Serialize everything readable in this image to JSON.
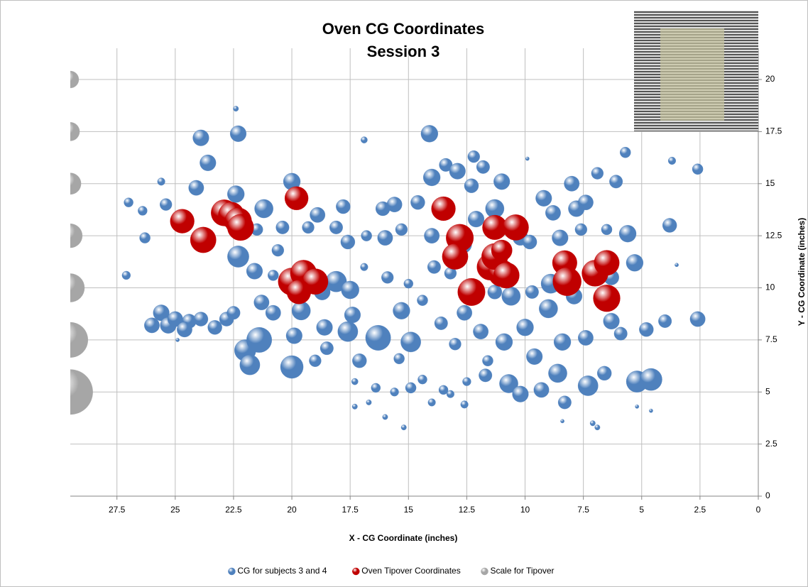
{
  "chart_data": {
    "type": "bubble",
    "title": "Oven CG Coordinates",
    "subtitle": "Session 3",
    "x_label": "X - CG Coordinate (inches)",
    "y_label": "Y - CG Coordinate (inches)",
    "xlim": [
      29.5,
      0
    ],
    "ylim": [
      0,
      21.5
    ],
    "xticks": [
      27.5,
      25,
      22.5,
      20,
      17.5,
      15,
      12.5,
      10,
      7.5,
      5,
      2.5,
      0
    ],
    "yticks": [
      0,
      2.5,
      5,
      7.5,
      10,
      12.5,
      15,
      17.5,
      20
    ],
    "grid": true,
    "legend": "bottom",
    "series": [
      {
        "name": "CG for subjects 3 and 4",
        "color": "#4f81bd",
        "x": [
          27,
          27.1,
          26.4,
          26.3,
          26,
          25.6,
          25.3,
          25.4,
          25.6,
          25,
          24.4,
          24.6,
          24.1,
          23.9,
          23.6,
          23.9,
          23.3,
          22.8,
          22.5,
          22.4,
          22.3,
          22.3,
          22.4,
          22,
          21.8,
          21.6,
          21.4,
          21.2,
          21.3,
          21.5,
          20.8,
          20.6,
          20.4,
          20,
          20,
          19.9,
          19.6,
          19.3,
          18.9,
          18.7,
          18.6,
          18.5,
          18.1,
          18.1,
          17.8,
          17.6,
          17.6,
          17.4,
          17.1,
          16.9,
          16.9,
          16.8,
          16.3,
          16.1,
          16,
          15.9,
          15.6,
          15.4,
          15.3,
          15.3,
          15,
          14.9,
          14.9,
          14.6,
          14.4,
          14.1,
          14,
          14,
          13.6,
          13.4,
          13.2,
          13,
          12.9,
          12.6,
          12.3,
          12.2,
          12.1,
          11.9,
          11.8,
          11.7,
          11.3,
          11.3,
          11,
          10.9,
          10.7,
          10.6,
          10.2,
          10,
          9.9,
          9.7,
          9.6,
          9.2,
          9,
          8.8,
          8.5,
          8.4,
          8.3,
          8,
          7.8,
          7.6,
          7.4,
          7.4,
          7.3,
          7.1,
          6.9,
          6.6,
          6.5,
          6.3,
          6.1,
          5.9,
          5.7,
          5.6,
          5.3,
          5.2,
          4.6,
          4.8,
          4,
          3.8,
          3.7,
          3.3,
          2.6,
          2.6,
          3.5,
          4.6,
          5.2,
          7.1,
          6.9,
          8.4,
          12.6,
          13.2,
          14,
          15.2,
          16,
          16.7,
          17.3,
          17.3,
          16.4,
          15.6,
          14.4,
          13.5,
          12.5,
          11.6,
          24.9,
          9.3,
          8.6,
          10.2,
          17.5,
          19,
          20.8,
          12.7,
          13.9,
          6.3,
          9.8,
          7.9,
          8.9
        ],
        "y": [
          14.1,
          10.6,
          13.7,
          12.4,
          8.2,
          8.8,
          8.2,
          14,
          15.1,
          8.5,
          8.4,
          8,
          14.8,
          17.2,
          16,
          8.5,
          8.1,
          8.5,
          8.8,
          14.5,
          11.5,
          17.4,
          18.6,
          7,
          6.3,
          10.8,
          7.5,
          13.8,
          9.3,
          12.8,
          8.8,
          11.8,
          12.9,
          15.1,
          6.2,
          7.7,
          8.9,
          12.9,
          13.5,
          9.8,
          8.1,
          7.1,
          10.3,
          12.9,
          13.9,
          12.2,
          7.9,
          8.7,
          6.5,
          17.1,
          11,
          12.5,
          7.6,
          13.8,
          12.4,
          10.5,
          14,
          6.6,
          8.9,
          12.8,
          10.2,
          7.4,
          5.2,
          14.1,
          9.4,
          17.4,
          12.5,
          15.3,
          8.3,
          15.9,
          10.7,
          7.3,
          15.6,
          8.8,
          14.9,
          16.3,
          13.3,
          7.9,
          15.8,
          5.8,
          13.8,
          9.8,
          15.1,
          7.4,
          5.4,
          9.6,
          12.4,
          8.1,
          16.2,
          9.8,
          6.7,
          14.3,
          9,
          13.6,
          12.4,
          7.4,
          4.5,
          15,
          13.8,
          12.8,
          14.1,
          7.6,
          5.3,
          10.9,
          15.5,
          5.9,
          12.8,
          8.4,
          15.1,
          7.8,
          16.5,
          12.6,
          11.2,
          5.5,
          5.6,
          8,
          8.4,
          13,
          16.1,
          18,
          15.7,
          8.5,
          11.1,
          4.1,
          4.3,
          3.5,
          3.3,
          3.6,
          4.4,
          4.9,
          4.5,
          3.3,
          3.8,
          4.5,
          4.3,
          5.5,
          5.2,
          5,
          5.6,
          5.1,
          5.5,
          6.5,
          7.5,
          5.1,
          5.9,
          4.9,
          9.9,
          6.5,
          10.6,
          12.1,
          11,
          10.5,
          12.2,
          9.6,
          10.2
        ],
        "sizes": [
          0.3,
          0.25,
          0.3,
          0.4,
          0.8,
          0.9,
          0.9,
          0.5,
          0.2,
          0.8,
          0.7,
          0.8,
          0.8,
          0.9,
          0.9,
          0.7,
          0.7,
          0.7,
          0.6,
          1,
          1.6,
          0.9,
          0.1,
          1.6,
          1.4,
          0.9,
          2.2,
          1.2,
          0.8,
          0.5,
          0.8,
          0.5,
          0.6,
          1,
          1.8,
          0.9,
          1.2,
          0.5,
          0.8,
          0.9,
          0.9,
          0.6,
          1.5,
          0.6,
          0.7,
          0.7,
          1.4,
          0.9,
          0.7,
          0.15,
          0.2,
          0.4,
          2.2,
          0.7,
          0.8,
          0.5,
          0.8,
          0.4,
          1,
          0.5,
          0.3,
          1.4,
          0.4,
          0.7,
          0.4,
          1,
          0.8,
          1,
          0.6,
          0.6,
          0.5,
          0.5,
          0.9,
          0.8,
          0.7,
          0.5,
          0.9,
          0.8,
          0.6,
          0.6,
          1.2,
          0.7,
          0.9,
          1,
          1.2,
          1.2,
          0.8,
          1,
          0.05,
          0.6,
          0.9,
          0.9,
          1.2,
          0.8,
          0.9,
          1,
          0.6,
          0.8,
          0.9,
          0.5,
          0.8,
          0.8,
          1.4,
          0.7,
          0.5,
          0.7,
          0.4,
          0.9,
          0.6,
          0.6,
          0.4,
          1,
          1,
          1.6,
          1.7,
          0.7,
          0.6,
          0.7,
          0.2,
          0.3,
          0.4,
          0.8,
          0.05,
          0.05,
          0.05,
          0.1,
          0.1,
          0.05,
          0.2,
          0.2,
          0.2,
          0.1,
          0.1,
          0.1,
          0.1,
          0.15,
          0.3,
          0.25,
          0.3,
          0.3,
          0.25,
          0.4,
          0.05,
          0.8,
          1.2,
          0.9,
          1.1,
          0.5,
          0.4,
          1.3,
          0.6,
          0.8,
          0.7,
          0.9,
          1.3
        ]
      },
      {
        "name": "Oven Tipover Coordinates",
        "color": "#c00000",
        "x": [
          24.7,
          23.8,
          22.9,
          22.6,
          22.3,
          22.2,
          20,
          19.5,
          19,
          19.7,
          19.8,
          13.5,
          12.8,
          13,
          12.3,
          11.3,
          11.5,
          11,
          11.3,
          11,
          10.4,
          10.8,
          8.3,
          8.2,
          7,
          6.5,
          6.5
        ],
        "y": [
          13.2,
          12.3,
          13.6,
          13.5,
          13.2,
          12.9,
          10.3,
          10.7,
          10.3,
          9.8,
          14.3,
          13.8,
          12.4,
          11.5,
          9.8,
          12.9,
          11,
          10.7,
          11.5,
          11.8,
          12.9,
          10.6,
          11.2,
          10.3,
          10.7,
          11.2,
          9.5
        ],
        "sizes": [
          2,
          2.3,
          2.4,
          2.3,
          2.5,
          2.4,
          2.6,
          2.4,
          2.3,
          2,
          1.9,
          2,
          2.6,
          2.3,
          2.6,
          2.1,
          2.4,
          2.5,
          2.4,
          1.5,
          2.3,
          2.3,
          2.1,
          2.8,
          2.4,
          2.2,
          2.5
        ]
      },
      {
        "name": "Scale for Tipover",
        "color": "#a6a6a6",
        "x": [
          29.5,
          29.5,
          29.5,
          29.5,
          29.5,
          29.5,
          29.5
        ],
        "y": [
          20,
          17.5,
          15,
          12.5,
          10,
          7.5,
          5
        ],
        "sizes": [
          1,
          1.2,
          1.6,
          2,
          2.8,
          4.3,
          7
        ]
      }
    ]
  }
}
